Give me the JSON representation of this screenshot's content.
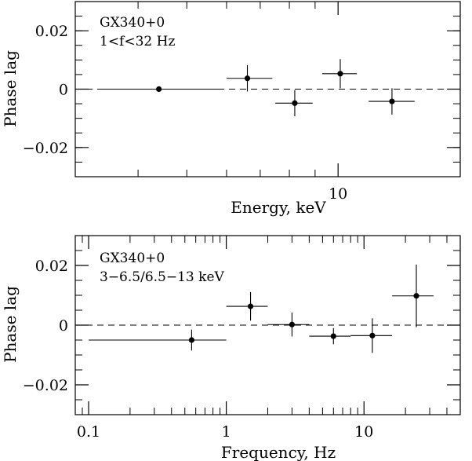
{
  "chart_data": [
    {
      "type": "scatter",
      "title": "",
      "annotations": [
        "GX340+0",
        "1<f<32 Hz"
      ],
      "xlabel": "Energy, keV",
      "ylabel": "Phase lag",
      "xscale": "log",
      "xlim": [
        3.0,
        17.5
      ],
      "ylim": [
        -0.03,
        0.03
      ],
      "x_tick_labels": [
        {
          "value": 10,
          "label": "10"
        }
      ],
      "y_tick_labels": [
        {
          "value": 0.02,
          "label": "0.02"
        },
        {
          "value": 0,
          "label": "0"
        },
        {
          "value": -0.02,
          "label": "−0.02"
        }
      ],
      "reference_line": {
        "y": 0,
        "style": "dashed"
      },
      "points": [
        {
          "x": 4.4,
          "xlo": 3.4,
          "xhi": 5.9,
          "y": 0.0,
          "yerr": 0.0003
        },
        {
          "x": 6.6,
          "xlo": 6.0,
          "xhi": 7.4,
          "y": 0.0037,
          "yerr": 0.0045
        },
        {
          "x": 8.2,
          "xlo": 7.5,
          "xhi": 8.9,
          "y": -0.0048,
          "yerr": 0.0045
        },
        {
          "x": 10.1,
          "xlo": 9.3,
          "xhi": 10.9,
          "y": 0.0053,
          "yerr": 0.005
        },
        {
          "x": 12.8,
          "xlo": 11.5,
          "xhi": 14.2,
          "y": -0.0042,
          "yerr": 0.0045
        }
      ]
    },
    {
      "type": "scatter",
      "title": "",
      "annotations": [
        "GX340+0",
        "3−6.5/6.5−13 keV"
      ],
      "xlabel": "Frequency, Hz",
      "ylabel": "Phase lag",
      "xscale": "log",
      "xlim": [
        0.08,
        50
      ],
      "ylim": [
        -0.03,
        0.03
      ],
      "x_tick_labels": [
        {
          "value": 0.1,
          "label": "0.1"
        },
        {
          "value": 1,
          "label": "1"
        },
        {
          "value": 10,
          "label": "10"
        }
      ],
      "y_tick_labels": [
        {
          "value": 0.02,
          "label": "0.02"
        },
        {
          "value": 0,
          "label": "0"
        },
        {
          "value": -0.02,
          "label": "−0.02"
        }
      ],
      "reference_line": {
        "y": 0,
        "style": "dashed"
      },
      "points": [
        {
          "x": 0.56,
          "xlo": 0.1,
          "xhi": 1.0,
          "y": -0.005,
          "yerr": 0.0035
        },
        {
          "x": 1.5,
          "xlo": 1.0,
          "xhi": 2.0,
          "y": 0.0063,
          "yerr": 0.0048
        },
        {
          "x": 3.0,
          "xlo": 2.0,
          "xhi": 4.0,
          "y": 0.0002,
          "yerr": 0.004
        },
        {
          "x": 6.0,
          "xlo": 4.0,
          "xhi": 8.0,
          "y": -0.0037,
          "yerr": 0.0027
        },
        {
          "x": 11.5,
          "xlo": 8.0,
          "xhi": 16.0,
          "y": -0.0035,
          "yerr": 0.0058
        },
        {
          "x": 24,
          "xlo": 16,
          "xhi": 32,
          "y": 0.0098,
          "yerr": 0.0105
        }
      ]
    }
  ]
}
